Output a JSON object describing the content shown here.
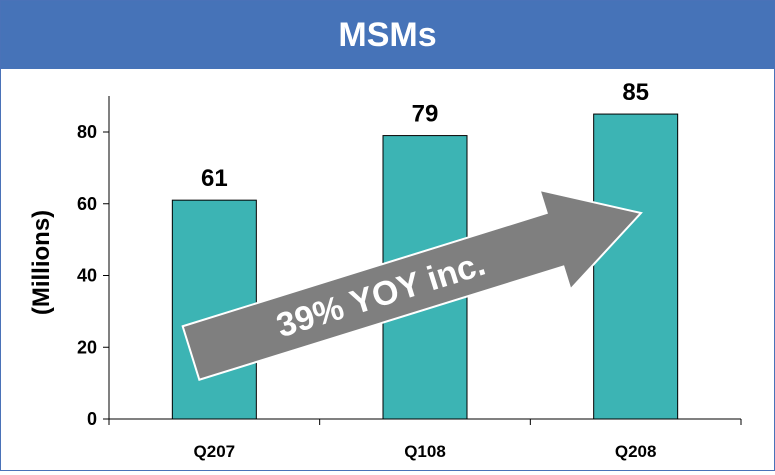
{
  "header": {
    "title": "MSMs"
  },
  "chart_data": {
    "type": "bar",
    "title": "MSMs",
    "categories": [
      "Q207",
      "Q108",
      "Q208"
    ],
    "values": [
      61,
      79,
      85
    ],
    "data_labels": [
      "61",
      "79",
      "85"
    ],
    "ylabel": "(Millions)",
    "xlabel": "",
    "ylim": [
      0,
      90
    ],
    "yticks": [
      0,
      20,
      40,
      60,
      80
    ],
    "grid": false,
    "bar_color": "#3cb4b4",
    "annotation": {
      "text": "39% YOY inc.",
      "shape": "arrow",
      "color": "#7f7f7f",
      "from_category": "Q207",
      "to_category": "Q208"
    }
  }
}
